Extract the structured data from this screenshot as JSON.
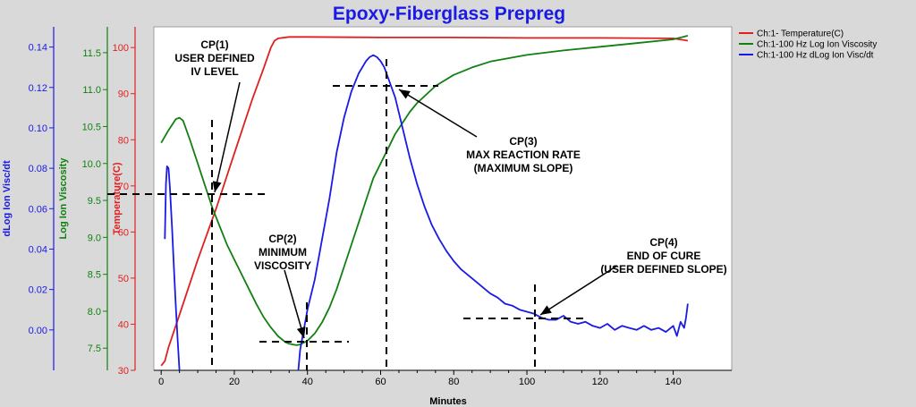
{
  "chart_data": {
    "type": "line",
    "title": "Epoxy-Fiberglass Prepreg",
    "xlabel": "Minutes",
    "xlim": [
      -2,
      156
    ],
    "x_ticks": [
      "0",
      "20",
      "40",
      "60",
      "80",
      "100",
      "120",
      "140"
    ],
    "grid": false,
    "legend_position": "top-right",
    "axes": [
      {
        "id": "temp",
        "label": "Temperature(C)",
        "color": "#e02020",
        "ylim": [
          30,
          104.5
        ],
        "ticks": [
          30,
          40,
          50,
          60,
          70,
          80,
          90,
          100
        ],
        "tick_labels": [
          "30",
          "40",
          "50",
          "60",
          "70",
          "80",
          "90",
          "100"
        ]
      },
      {
        "id": "logvisc",
        "label": "Log Ion Viscosity",
        "color": "#108010",
        "ylim": [
          7.2,
          11.85
        ],
        "ticks": [
          7.5,
          8.0,
          8.5,
          9.0,
          9.5,
          10.0,
          10.5,
          11.0,
          11.5
        ],
        "tick_labels": [
          "7.5",
          "8.0",
          "8.5",
          "9.0",
          "9.5",
          "10.0",
          "10.5",
          "11.0",
          "11.5"
        ]
      },
      {
        "id": "dlog",
        "label": "dLog Ion Visc/dt",
        "color": "#1a1ae6",
        "ylim": [
          -0.02,
          0.15
        ],
        "ticks": [
          0.0,
          0.02,
          0.04,
          0.06,
          0.08,
          0.1,
          0.12,
          0.14
        ],
        "tick_labels": [
          "0.00",
          "0.02",
          "0.04",
          "0.06",
          "0.08",
          "0.10",
          "0.12",
          "0.14"
        ]
      }
    ],
    "series": [
      {
        "name": "Ch:1- Temperature(C)",
        "axis": "temp",
        "color": "#e02020",
        "x": [
          0,
          1,
          2,
          5,
          10,
          15,
          20,
          25,
          28,
          30,
          31,
          32,
          35,
          40,
          60,
          80,
          100,
          120,
          140,
          144
        ],
        "y": [
          31,
          32,
          35,
          42,
          54,
          65,
          77,
          89,
          95.5,
          100,
          101.5,
          102,
          102.3,
          102.3,
          102.2,
          102.2,
          102.1,
          102.1,
          102,
          101.5
        ]
      },
      {
        "name": "Ch:1-100 Hz Log Ion Viscosity",
        "axis": "logvisc",
        "color": "#108010",
        "x": [
          0,
          2,
          4,
          5,
          6,
          8,
          10,
          12,
          14,
          16,
          18,
          20,
          22,
          24,
          26,
          28,
          30,
          32,
          34,
          35,
          36,
          37,
          38,
          40,
          42,
          44,
          46,
          48,
          50,
          52,
          54,
          56,
          58,
          60,
          62,
          64,
          66,
          68,
          70,
          75,
          80,
          85,
          90,
          100,
          110,
          120,
          130,
          140,
          144
        ],
        "y": [
          10.28,
          10.45,
          10.6,
          10.62,
          10.58,
          10.3,
          10.0,
          9.7,
          9.4,
          9.15,
          8.9,
          8.7,
          8.5,
          8.3,
          8.1,
          7.92,
          7.78,
          7.66,
          7.58,
          7.56,
          7.55,
          7.54,
          7.55,
          7.6,
          7.7,
          7.85,
          8.05,
          8.3,
          8.6,
          8.9,
          9.2,
          9.5,
          9.8,
          10.0,
          10.2,
          10.4,
          10.55,
          10.7,
          10.82,
          11.05,
          11.2,
          11.3,
          11.38,
          11.47,
          11.53,
          11.58,
          11.63,
          11.68,
          11.73
        ]
      },
      {
        "name": "Ch:1-100 Hz dLog Ion Visc/dt",
        "axis": "dlog",
        "color": "#1a1ae6",
        "x": [
          1,
          1.3,
          1.6,
          2,
          2.4,
          3,
          3.5,
          4,
          4.5,
          5,
          37.5,
          38,
          39,
          40,
          42,
          44,
          46,
          48,
          50,
          52,
          54,
          56,
          57,
          58,
          59,
          60,
          61,
          62,
          64,
          66,
          68,
          70,
          72,
          74,
          76,
          78,
          80,
          82,
          84,
          86,
          88,
          90,
          92,
          94,
          96,
          98,
          100,
          102,
          104,
          106,
          108,
          110,
          112,
          114,
          116,
          118,
          120,
          122,
          124,
          126,
          128,
          130,
          132,
          134,
          136,
          138,
          140,
          141,
          142,
          143,
          143.5,
          144
        ],
        "y": [
          0.045,
          0.072,
          0.081,
          0.08,
          0.07,
          0.05,
          0.03,
          0.012,
          -0.005,
          -0.02,
          -0.02,
          -0.01,
          0.0,
          0.01,
          0.025,
          0.045,
          0.065,
          0.088,
          0.105,
          0.118,
          0.127,
          0.133,
          0.135,
          0.136,
          0.135,
          0.133,
          0.13,
          0.125,
          0.115,
          0.1,
          0.085,
          0.072,
          0.061,
          0.052,
          0.045,
          0.039,
          0.034,
          0.03,
          0.027,
          0.024,
          0.021,
          0.018,
          0.016,
          0.013,
          0.012,
          0.01,
          0.009,
          0.008,
          0.006,
          0.005,
          0.005,
          0.007,
          0.004,
          0.003,
          0.004,
          0.002,
          0.001,
          0.003,
          0.0,
          0.002,
          0.001,
          0.0,
          0.002,
          0.0,
          0.001,
          -0.001,
          0.002,
          -0.003,
          0.004,
          0.001,
          0.006,
          0.013
        ]
      }
    ],
    "annotations": [
      {
        "lines": [
          "CP(1)",
          "USER DEFINED",
          "IV LEVEL"
        ]
      },
      {
        "lines": [
          "CP(2)",
          "MINIMUM",
          "VISCOSITY"
        ]
      },
      {
        "lines": [
          "CP(3)",
          "MAX REACTION RATE",
          "(MAXIMUM SLOPE)"
        ]
      },
      {
        "lines": [
          "CP(4)",
          "END OF CURE",
          "(USER DEFINED SLOPE)"
        ]
      }
    ]
  }
}
